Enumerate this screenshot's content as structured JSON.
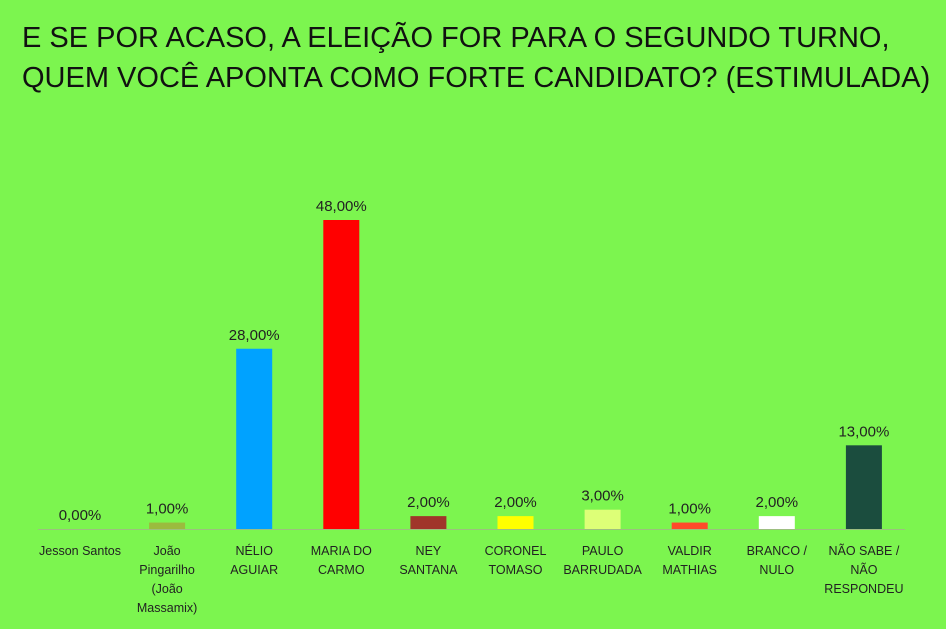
{
  "chart_data": {
    "type": "bar",
    "title": "E SE POR ACASO, A ELEIÇÃO FOR PARA O SEGUNDO TURNO, QUEM VOCÊ APONTA COMO FORTE CANDIDATO? (ESTIMULADA)",
    "categories": [
      [
        "Jesson Santos"
      ],
      [
        "João",
        "Pingarilho",
        "(João",
        "Massamix)"
      ],
      [
        "NÉLIO",
        "AGUIAR"
      ],
      [
        "MARIA DO",
        "CARMO"
      ],
      [
        "NEY",
        "SANTANA"
      ],
      [
        "CORONEL",
        "TOMASO"
      ],
      [
        "PAULO",
        "BARRUDADA"
      ],
      [
        "VALDIR",
        "MATHIAS"
      ],
      [
        "BRANCO /",
        "NULO"
      ],
      [
        "NÃO SABE /",
        "NÃO",
        "RESPONDEU"
      ]
    ],
    "values": [
      0,
      1,
      28,
      48,
      2,
      2,
      3,
      1,
      2,
      13
    ],
    "value_labels": [
      "0,00%",
      "1,00%",
      "28,00%",
      "48,00%",
      "2,00%",
      "2,00%",
      "3,00%",
      "1,00%",
      "2,00%",
      "13,00%"
    ],
    "colors": [
      "#7CF54F",
      "#9BBB3E",
      "#00A2FF",
      "#FF0000",
      "#A0352A",
      "#FFFF00",
      "#DDFF77",
      "#FF4A2A",
      "#FFFFFF",
      "#1B4D3E"
    ],
    "ylim": [
      0,
      48
    ],
    "grid": false,
    "legend": "none"
  }
}
